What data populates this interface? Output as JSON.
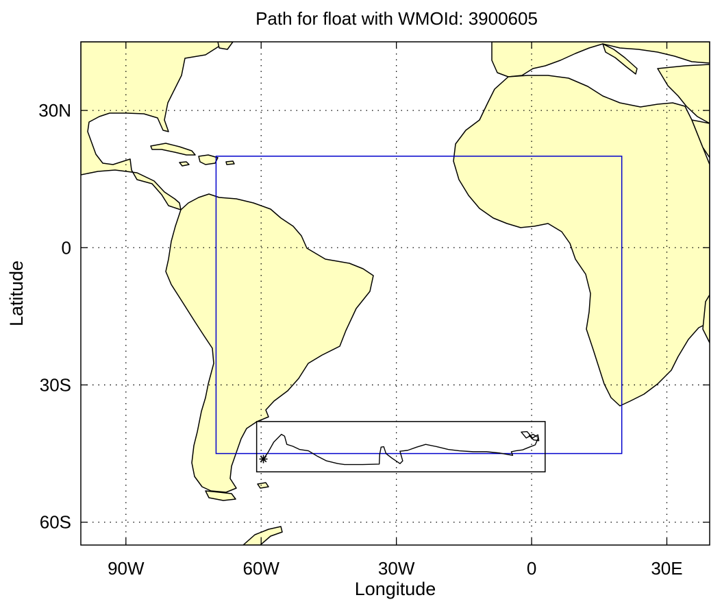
{
  "title": "Path for float with WMOId: 3900605",
  "axes": {
    "xlabel": "Longitude",
    "ylabel": "Latitude",
    "x_ticks": [
      {
        "value": -90,
        "label": "90W"
      },
      {
        "value": -60,
        "label": "60W"
      },
      {
        "value": -30,
        "label": "30W"
      },
      {
        "value": 0,
        "label": "0"
      },
      {
        "value": 30,
        "label": "30E"
      }
    ],
    "y_ticks": [
      {
        "value": 30,
        "label": "30N"
      },
      {
        "value": 0,
        "label": "0"
      },
      {
        "value": -30,
        "label": "30S"
      },
      {
        "value": -60,
        "label": "60S"
      }
    ],
    "xlim": [
      -100,
      39.5
    ],
    "ylim": [
      -65,
      45
    ],
    "grid": true
  },
  "colors": {
    "land": "#ffffc0",
    "coast": "#000000",
    "region_box": "#0000cc",
    "trajectory_box": "#000000",
    "trajectory": "#000000"
  },
  "regions": {
    "blue_box": {
      "lon": [
        -70,
        20
      ],
      "lat": [
        -45,
        20
      ]
    },
    "black_box": {
      "lon": [
        -61,
        3
      ],
      "lat": [
        -49,
        -38
      ]
    }
  },
  "float_path": {
    "start_marker": "asterisk",
    "start": [
      -59.5,
      -46.2
    ],
    "points": [
      [
        -59.5,
        -46.2
      ],
      [
        -58.5,
        -44.8
      ],
      [
        -57.2,
        -42.5
      ],
      [
        -55.5,
        -40.8
      ],
      [
        -54.8,
        -41.2
      ],
      [
        -54.3,
        -43.0
      ],
      [
        -53.0,
        -43.4
      ],
      [
        -51.5,
        -44.1
      ],
      [
        -49.5,
        -44.4
      ],
      [
        -47.5,
        -45.6
      ],
      [
        -45.5,
        -46.6
      ],
      [
        -43.0,
        -47.2
      ],
      [
        -41.5,
        -47.4
      ],
      [
        -39.5,
        -47.4
      ],
      [
        -37.5,
        -47.4
      ],
      [
        -33.8,
        -47.3
      ],
      [
        -33.7,
        -45.2
      ],
      [
        -33.4,
        -43.6
      ],
      [
        -32.8,
        -43.5
      ],
      [
        -32.3,
        -45.0
      ],
      [
        -31.0,
        -46.0
      ],
      [
        -29.2,
        -47.2
      ],
      [
        -28.6,
        -46.6
      ],
      [
        -29.2,
        -44.5
      ],
      [
        -27.5,
        -44.3
      ],
      [
        -25.5,
        -43.6
      ],
      [
        -23.5,
        -43.0
      ],
      [
        -21.0,
        -43.5
      ],
      [
        -18.5,
        -44.1
      ],
      [
        -16.0,
        -44.4
      ],
      [
        -13.0,
        -44.6
      ],
      [
        -10.0,
        -44.6
      ],
      [
        -7.0,
        -44.9
      ],
      [
        -4.2,
        -45.4
      ],
      [
        -4.5,
        -44.6
      ],
      [
        -3.5,
        -44.4
      ],
      [
        -2.0,
        -44.2
      ],
      [
        -0.5,
        -43.6
      ],
      [
        0.8,
        -43.1
      ],
      [
        1.5,
        -41.5
      ],
      [
        0.3,
        -40.8
      ],
      [
        -1.2,
        -41.6
      ],
      [
        -2.3,
        -40.3
      ],
      [
        -1.0,
        -40.2
      ],
      [
        0.2,
        -41.6
      ],
      [
        1.4,
        -40.9
      ],
      [
        1.6,
        -42.2
      ],
      [
        0.4,
        -42.0
      ],
      [
        -0.6,
        -41.0
      ]
    ]
  }
}
